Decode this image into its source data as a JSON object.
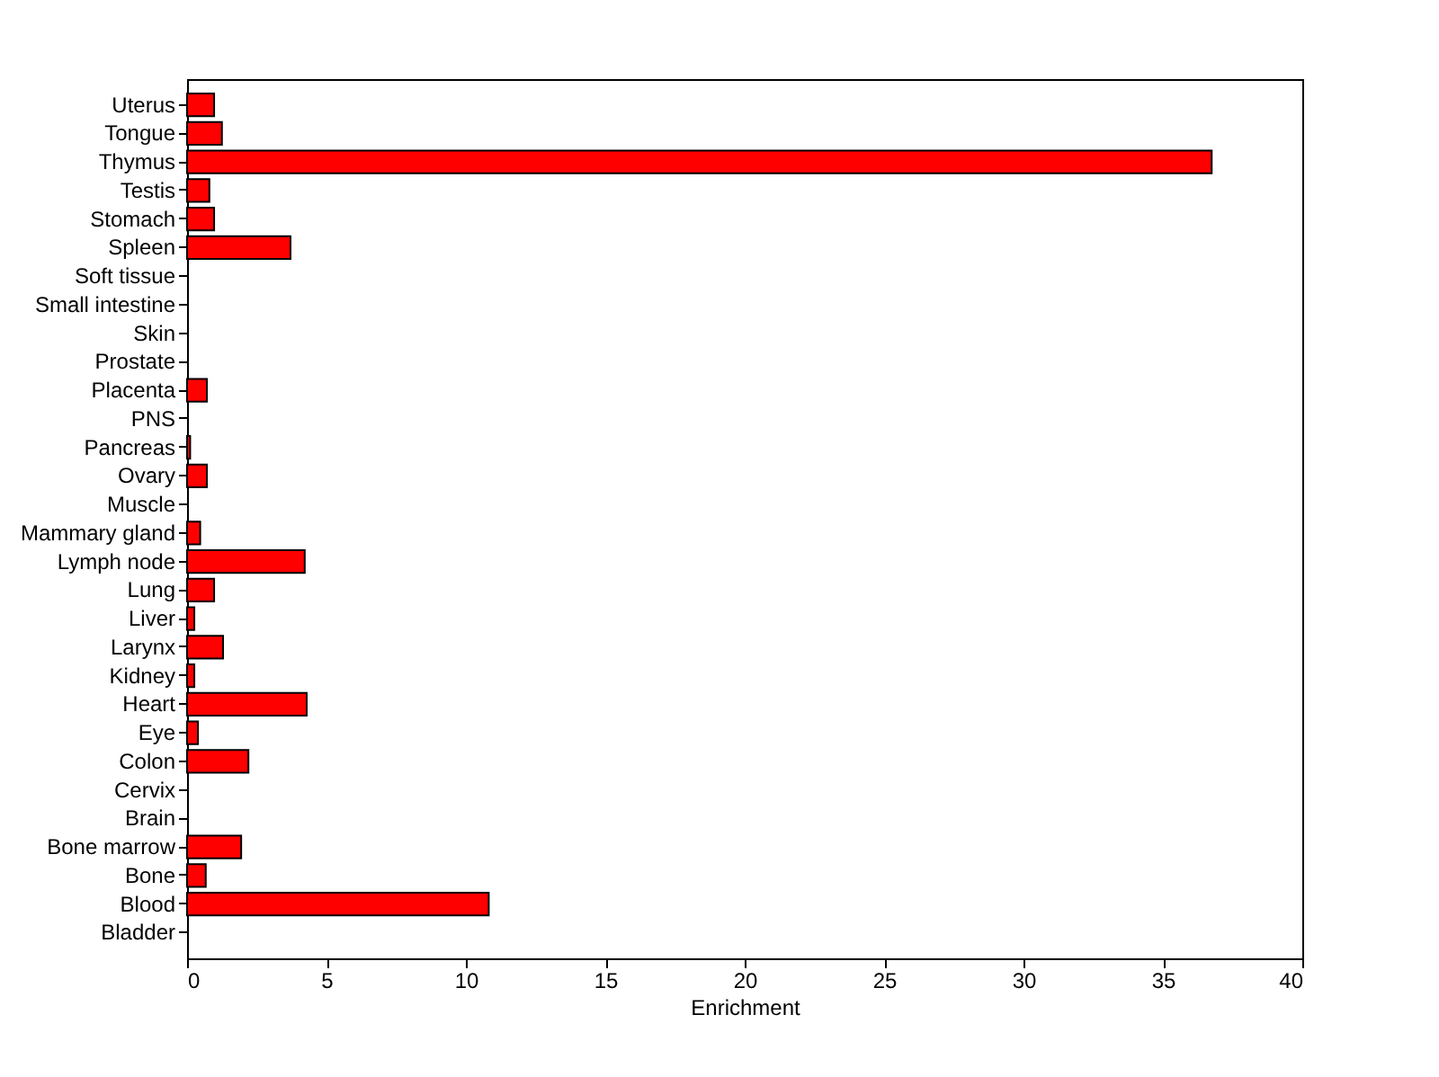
{
  "chart_data": {
    "type": "bar",
    "orientation": "horizontal",
    "xlabel": "Enrichment",
    "categories": [
      "Uterus",
      "Tongue",
      "Thymus",
      "Testis",
      "Stomach",
      "Spleen",
      "Soft tissue",
      "Small intestine",
      "Skin",
      "Prostate",
      "Placenta",
      "PNS",
      "Pancreas",
      "Ovary",
      "Muscle",
      "Mammary gland",
      "Lymph node",
      "Lung",
      "Liver",
      "Larynx",
      "Kidney",
      "Heart",
      "Eye",
      "Colon",
      "Cervix",
      "Brain",
      "Bone marrow",
      "Bone",
      "Blood",
      "Bladder"
    ],
    "values": [
      0.97,
      1.25,
      36.75,
      0.8,
      0.97,
      3.71,
      0,
      0,
      0,
      0,
      0.71,
      0,
      0.11,
      0.71,
      0,
      0.47,
      4.22,
      0.97,
      0.26,
      1.29,
      0.26,
      4.29,
      0.39,
      2.2,
      0,
      0,
      1.94,
      0.67,
      10.82,
      0
    ],
    "color": "#ff0000",
    "xlim": [
      0,
      40
    ],
    "xticks": [
      0,
      5,
      10,
      15,
      20,
      25,
      30,
      35,
      40
    ],
    "grid": false
  }
}
